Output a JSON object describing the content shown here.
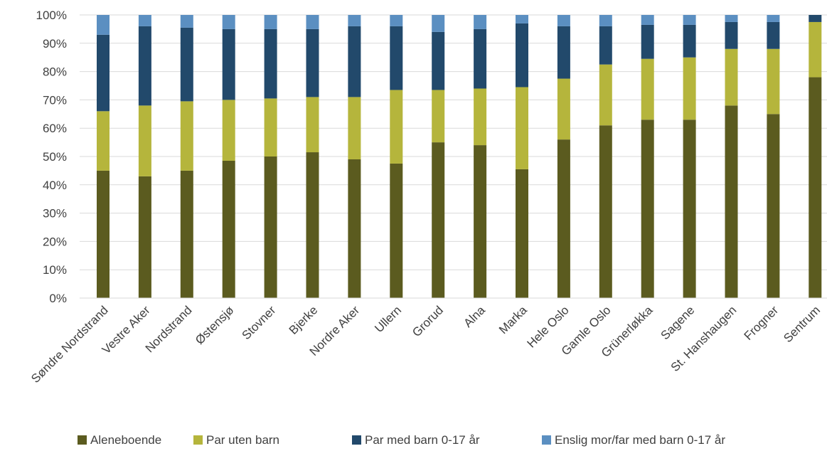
{
  "chart_data": {
    "type": "bar",
    "stacked": true,
    "percent": true,
    "categories": [
      "Søndre Nordstrand",
      "Vestre Aker",
      "Nordstrand",
      "Østensjø",
      "Stovner",
      "Bjerke",
      "Nordre Aker",
      "Ullern",
      "Grorud",
      "Alna",
      "Marka",
      "Hele Oslo",
      "Gamle Oslo",
      "Grünerløkka",
      "Sagene",
      "St. Hanshaugen",
      "Frogner",
      "Sentrum"
    ],
    "series": [
      {
        "name": "Aleneboende",
        "color": "#5b5b1f",
        "values": [
          45,
          43,
          45,
          48.5,
          50,
          51.5,
          49,
          47.5,
          55,
          54,
          45.5,
          56,
          61,
          63,
          63,
          68,
          65,
          78
        ]
      },
      {
        "name": "Par uten barn",
        "color": "#b5b53c",
        "values": [
          21,
          25,
          24.5,
          21.5,
          20.5,
          19.5,
          22,
          26,
          18.5,
          20,
          29,
          21.5,
          21.5,
          21.5,
          22,
          20,
          23,
          19.5
        ]
      },
      {
        "name": "Par med barn 0-17 år",
        "color": "#22496b",
        "values": [
          27,
          28,
          26,
          25,
          24.5,
          24,
          25,
          22.5,
          20.5,
          21,
          22.5,
          18.5,
          13.5,
          12,
          11.5,
          9.5,
          9.5,
          2.5
        ]
      },
      {
        "name": "Enslig mor/far med barn 0-17 år",
        "color": "#5b8fc1",
        "values": [
          7,
          4,
          4.5,
          5,
          5,
          5,
          4,
          4,
          6,
          5,
          3,
          4,
          4,
          3.5,
          3.5,
          2.5,
          2.5,
          0
        ]
      }
    ],
    "yticks": [
      "0%",
      "10%",
      "20%",
      "30%",
      "40%",
      "50%",
      "60%",
      "70%",
      "80%",
      "90%",
      "100%"
    ],
    "ylim": [
      0,
      100
    ],
    "xlabel": "",
    "ylabel": "",
    "title": "",
    "grid": true,
    "legend_position": "bottom"
  }
}
